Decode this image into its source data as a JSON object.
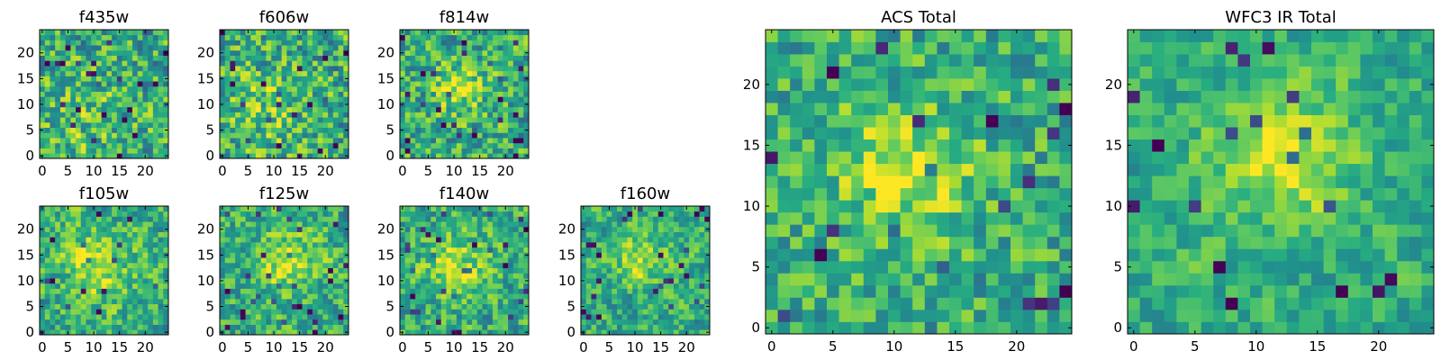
{
  "figure": {
    "colormap": "viridis",
    "colors": {
      "background": "#ffffff",
      "frame": "#000000"
    }
  },
  "chart_data": [
    {
      "type": "heatmap",
      "title": "f435w",
      "grid_size": 25,
      "xticks": [
        "0",
        "5",
        "10",
        "15",
        "20"
      ],
      "yticks": [
        "0",
        "5",
        "10",
        "15",
        "20"
      ],
      "xlim": [
        -0.5,
        24.5
      ],
      "ylim": [
        -0.5,
        24.5
      ],
      "seed": 11,
      "blob_center": [
        8,
        8
      ],
      "blob_sigma": 7,
      "blob_strength": 0.1,
      "noise_level": 0.32,
      "smoothing": 0.15
    },
    {
      "type": "heatmap",
      "title": "f606w",
      "grid_size": 25,
      "xticks": [
        "0",
        "5",
        "10",
        "15",
        "20"
      ],
      "yticks": [
        "0",
        "5",
        "10",
        "15",
        "20"
      ],
      "xlim": [
        -0.5,
        24.5
      ],
      "ylim": [
        -0.5,
        24.5
      ],
      "seed": 23,
      "blob_center": [
        8,
        9
      ],
      "blob_sigma": 6,
      "blob_strength": 0.14,
      "noise_level": 0.32,
      "smoothing": 0.15
    },
    {
      "type": "heatmap",
      "title": "f814w",
      "grid_size": 25,
      "xticks": [
        "0",
        "5",
        "10",
        "15",
        "20"
      ],
      "yticks": [
        "0",
        "5",
        "10",
        "15",
        "20"
      ],
      "xlim": [
        -0.5,
        24.5
      ],
      "ylim": [
        -0.5,
        24.5
      ],
      "seed": 37,
      "blob_center": [
        11,
        13
      ],
      "blob_sigma": 3.5,
      "blob_strength": 0.26,
      "noise_level": 0.3,
      "smoothing": 0.15
    },
    {
      "type": "heatmap",
      "title": "f105w",
      "grid_size": 25,
      "xticks": [
        "0",
        "5",
        "10",
        "15",
        "20"
      ],
      "yticks": [
        "0",
        "5",
        "10",
        "15",
        "20"
      ],
      "xlim": [
        -0.5,
        24.5
      ],
      "ylim": [
        -0.5,
        24.5
      ],
      "seed": 41,
      "blob_center": [
        11,
        13
      ],
      "blob_sigma": 5,
      "blob_strength": 0.26,
      "noise_level": 0.3,
      "smoothing": 0.3
    },
    {
      "type": "heatmap",
      "title": "f125w",
      "grid_size": 25,
      "xticks": [
        "0",
        "5",
        "10",
        "15",
        "20"
      ],
      "yticks": [
        "0",
        "5",
        "10",
        "15",
        "20"
      ],
      "xlim": [
        -0.5,
        24.5
      ],
      "ylim": [
        -0.5,
        24.5
      ],
      "seed": 53,
      "blob_center": [
        13,
        14
      ],
      "blob_sigma": 4.5,
      "blob_strength": 0.26,
      "noise_level": 0.3,
      "smoothing": 0.3
    },
    {
      "type": "heatmap",
      "title": "f140w",
      "grid_size": 25,
      "xticks": [
        "0",
        "5",
        "10",
        "15",
        "20"
      ],
      "yticks": [
        "0",
        "5",
        "10",
        "15",
        "20"
      ],
      "xlim": [
        -0.5,
        24.5
      ],
      "ylim": [
        -0.5,
        24.5
      ],
      "seed": 67,
      "blob_center": [
        11,
        13
      ],
      "blob_sigma": 4.5,
      "blob_strength": 0.24,
      "noise_level": 0.3,
      "smoothing": 0.3
    },
    {
      "type": "heatmap",
      "title": "f160w",
      "grid_size": 25,
      "xticks": [
        "0",
        "5",
        "10",
        "15",
        "20"
      ],
      "yticks": [
        "0",
        "5",
        "10",
        "15",
        "20"
      ],
      "xlim": [
        -0.5,
        24.5
      ],
      "ylim": [
        -0.5,
        24.5
      ],
      "seed": 79,
      "blob_center": [
        11,
        14
      ],
      "blob_sigma": 3.5,
      "blob_strength": 0.26,
      "noise_level": 0.28,
      "smoothing": 0.35
    },
    {
      "type": "heatmap",
      "title": "ACS Total",
      "grid_size": 25,
      "xticks": [
        "0",
        "5",
        "10",
        "15",
        "20"
      ],
      "yticks": [
        "0",
        "5",
        "10",
        "15",
        "20"
      ],
      "xlim": [
        -0.5,
        24.5
      ],
      "ylim": [
        -0.5,
        24.5
      ],
      "seed": 97,
      "blob_center": [
        11,
        13
      ],
      "blob_sigma": 4,
      "blob_strength": 0.3,
      "noise_level": 0.26,
      "smoothing": 0.15
    },
    {
      "type": "heatmap",
      "title": "WFC3 IR Total",
      "grid_size": 25,
      "xticks": [
        "0",
        "5",
        "10",
        "15",
        "20"
      ],
      "yticks": [
        "0",
        "5",
        "10",
        "15",
        "20"
      ],
      "xlim": [
        -0.5,
        24.5
      ],
      "ylim": [
        -0.5,
        24.5
      ],
      "seed": 131,
      "blob_center": [
        12,
        14
      ],
      "blob_sigma": 4,
      "blob_strength": 0.32,
      "noise_level": 0.24,
      "smoothing": 0.4
    }
  ]
}
